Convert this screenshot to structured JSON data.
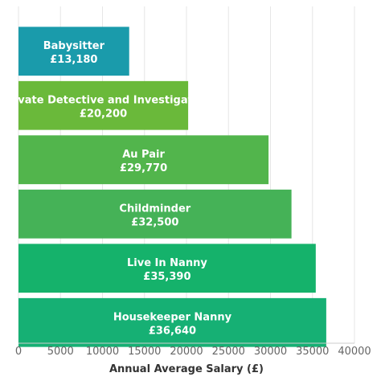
{
  "chart_data": {
    "type": "bar",
    "orientation": "horizontal",
    "categories": [
      "Babysitter",
      "Private Detective and Investigator",
      "Au Pair",
      "Childminder",
      "Live In Nanny",
      "Housekeeper Nanny"
    ],
    "values": [
      13180,
      20200,
      29770,
      32500,
      35390,
      36640
    ],
    "value_labels": [
      "£13,180",
      "£20,200",
      "£29,770",
      "£32,500",
      "£35,390",
      "£36,640"
    ],
    "bar_colors": [
      "#1a9bab",
      "#6ab93a",
      "#52b54c",
      "#45b257",
      "#15b26b",
      "#16b074"
    ],
    "xlabel": "Annual Average Salary (£)",
    "ylabel": "",
    "xlim": [
      0,
      40000
    ],
    "xticks": [
      0,
      5000,
      10000,
      15000,
      20000,
      25000,
      30000,
      35000,
      40000
    ],
    "grid": "vertical",
    "legend": "none"
  }
}
